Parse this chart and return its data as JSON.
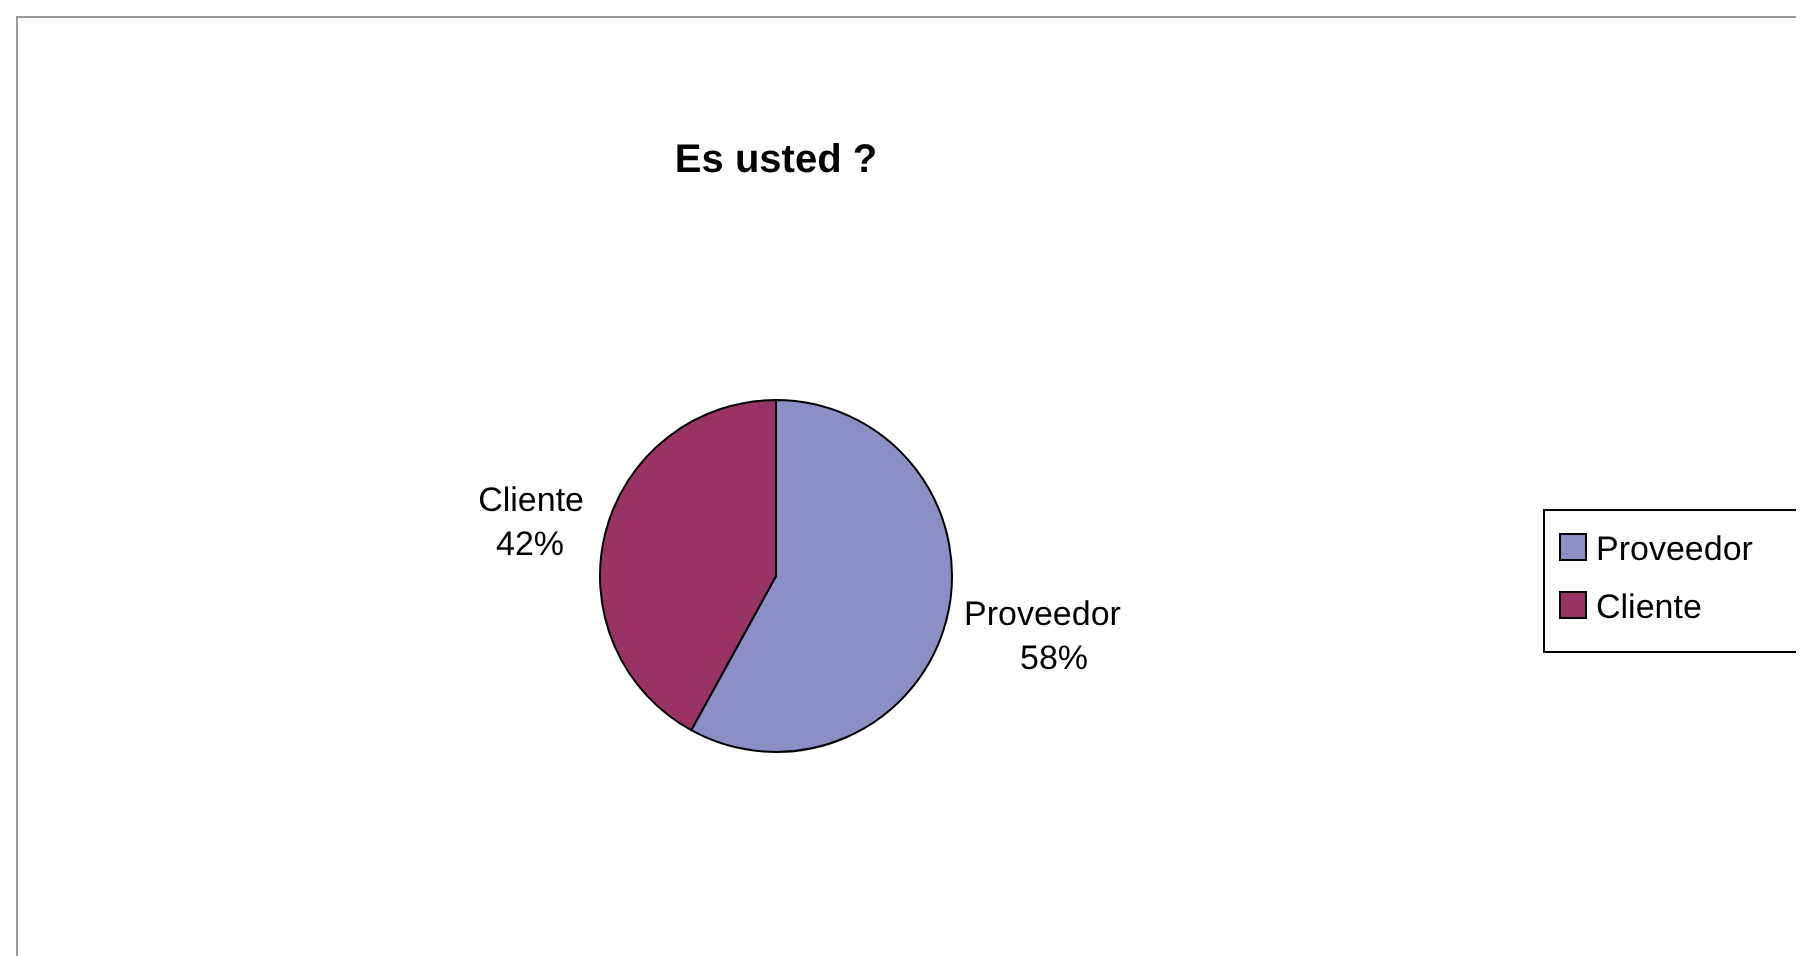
{
  "chart_data": {
    "type": "pie",
    "title": "Es usted ?",
    "categories": [
      "Proveedor",
      "Cliente"
    ],
    "values": [
      58,
      42
    ],
    "colors": [
      "#8c8fc6",
      "#993366"
    ],
    "value_labels": [
      "58%",
      "42%"
    ],
    "legend": "right"
  }
}
